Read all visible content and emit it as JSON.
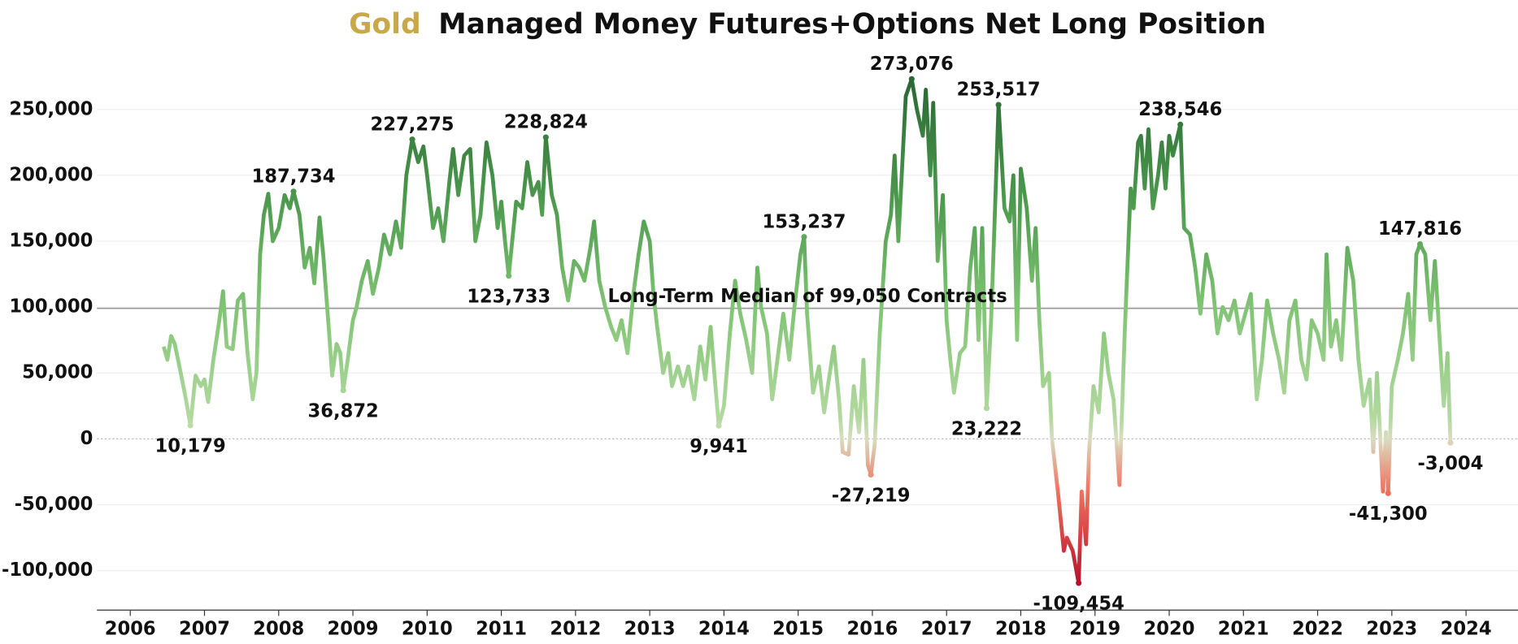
{
  "chart_data": {
    "type": "line",
    "title_highlight": "Gold",
    "title_highlight_color": "#c9a84a",
    "title": "Managed Money Futures+Options Net Long Position",
    "reference_line": {
      "value": 99050,
      "label": "Long-Term Median of 99,050 Contracts",
      "color": "#9a9a9a"
    },
    "xlim": [
      2005.55,
      2024.7
    ],
    "xticks": [
      2006,
      2007,
      2008,
      2009,
      2010,
      2011,
      2012,
      2013,
      2014,
      2015,
      2016,
      2017,
      2018,
      2019,
      2020,
      2021,
      2022,
      2023,
      2024
    ],
    "ylim": [
      -130000,
      300000
    ],
    "yticks": [
      {
        "value": -100000,
        "label": "-100,000"
      },
      {
        "value": -50000,
        "label": "-50,000"
      },
      0,
      {
        "value": 50000,
        "label": "50,000"
      },
      {
        "value": 100000,
        "label": "100,000"
      },
      {
        "value": 150000,
        "label": "150,000"
      },
      {
        "value": 200000,
        "label": "200,000"
      },
      {
        "value": 250000,
        "label": "250,000"
      }
    ],
    "grid": true,
    "color_stops": [
      {
        "value": -110000,
        "color": "#b5122b"
      },
      {
        "value": -40000,
        "color": "#f0705e"
      },
      {
        "value": 0,
        "color": "#d9dcc0"
      },
      {
        "value": 15000,
        "color": "#b3d9a0"
      },
      {
        "value": 100000,
        "color": "#80c474"
      },
      {
        "value": 180000,
        "color": "#4d9a4e"
      },
      {
        "value": 270000,
        "color": "#2a6a35"
      }
    ],
    "x": [
      2006.45,
      2006.5,
      2006.55,
      2006.6,
      2006.68,
      2006.75,
      2006.81,
      2006.88,
      2006.95,
      2007.0,
      2007.05,
      2007.12,
      2007.2,
      2007.25,
      2007.3,
      2007.38,
      2007.45,
      2007.52,
      2007.58,
      2007.65,
      2007.7,
      2007.75,
      2007.8,
      2007.86,
      2007.92,
      2008.0,
      2008.08,
      2008.15,
      2008.2,
      2008.28,
      2008.35,
      2008.42,
      2008.48,
      2008.55,
      2008.6,
      2008.68,
      2008.72,
      2008.78,
      2008.83,
      2008.87,
      2008.93,
      2009.0,
      2009.05,
      2009.12,
      2009.2,
      2009.27,
      2009.35,
      2009.42,
      2009.5,
      2009.58,
      2009.65,
      2009.72,
      2009.8,
      2009.88,
      2009.95,
      2010.0,
      2010.08,
      2010.15,
      2010.22,
      2010.3,
      2010.35,
      2010.42,
      2010.5,
      2010.58,
      2010.65,
      2010.72,
      2010.8,
      2010.88,
      2010.95,
      2011.0,
      2011.05,
      2011.1,
      2011.2,
      2011.28,
      2011.35,
      2011.42,
      2011.5,
      2011.55,
      2011.6,
      2011.68,
      2011.75,
      2011.82,
      2011.9,
      2011.98,
      2012.05,
      2012.12,
      2012.2,
      2012.25,
      2012.32,
      2012.4,
      2012.48,
      2012.55,
      2012.62,
      2012.7,
      2012.78,
      2012.85,
      2012.92,
      2013.0,
      2013.05,
      2013.1,
      2013.18,
      2013.25,
      2013.3,
      2013.38,
      2013.45,
      2013.52,
      2013.6,
      2013.68,
      2013.75,
      2013.82,
      2013.87,
      2013.93,
      2014.0,
      2014.08,
      2014.15,
      2014.22,
      2014.3,
      2014.38,
      2014.45,
      2014.5,
      2014.58,
      2014.65,
      2014.72,
      2014.8,
      2014.88,
      2014.95,
      2015.03,
      2015.08,
      2015.12,
      2015.2,
      2015.28,
      2015.35,
      2015.4,
      2015.48,
      2015.55,
      2015.6,
      2015.68,
      2015.75,
      2015.82,
      2015.88,
      2015.94,
      2015.98,
      2016.03,
      2016.1,
      2016.18,
      2016.25,
      2016.3,
      2016.35,
      2016.45,
      2016.53,
      2016.6,
      2016.68,
      2016.72,
      2016.78,
      2016.82,
      2016.88,
      2016.95,
      2017.0,
      2017.05,
      2017.1,
      2017.18,
      2017.25,
      2017.32,
      2017.38,
      2017.43,
      2017.48,
      2017.54,
      2017.6,
      2017.65,
      2017.7,
      2017.78,
      2017.85,
      2017.9,
      2017.95,
      2018.0,
      2018.08,
      2018.15,
      2018.2,
      2018.25,
      2018.3,
      2018.38,
      2018.42,
      2018.5,
      2018.58,
      2018.62,
      2018.7,
      2018.78,
      2018.82,
      2018.88,
      2018.92,
      2018.98,
      2019.05,
      2019.12,
      2019.18,
      2019.25,
      2019.33,
      2019.4,
      2019.48,
      2019.52,
      2019.58,
      2019.62,
      2019.67,
      2019.72,
      2019.78,
      2019.85,
      2019.9,
      2019.95,
      2020.0,
      2020.05,
      2020.15,
      2020.2,
      2020.28,
      2020.35,
      2020.42,
      2020.5,
      2020.58,
      2020.65,
      2020.72,
      2020.8,
      2020.88,
      2020.95,
      2021.0,
      2021.1,
      2021.18,
      2021.25,
      2021.32,
      2021.4,
      2021.48,
      2021.55,
      2021.62,
      2021.7,
      2021.78,
      2021.85,
      2021.92,
      2022.0,
      2022.08,
      2022.12,
      2022.18,
      2022.25,
      2022.32,
      2022.4,
      2022.48,
      2022.55,
      2022.62,
      2022.7,
      2022.75,
      2022.8,
      2022.88,
      2022.92,
      2022.95,
      2023.0,
      2023.08,
      2023.15,
      2023.22,
      2023.28,
      2023.33,
      2023.38,
      2023.45,
      2023.52,
      2023.58,
      2023.65,
      2023.7,
      2023.75,
      2023.79
    ],
    "values": [
      70000,
      60000,
      78000,
      72000,
      50000,
      30000,
      10179,
      48000,
      40000,
      45000,
      28000,
      60000,
      90000,
      112000,
      70000,
      68000,
      105000,
      110000,
      65000,
      30000,
      50000,
      140000,
      170000,
      186000,
      150000,
      160000,
      185000,
      175000,
      187734,
      170000,
      130000,
      145000,
      118000,
      168000,
      140000,
      80000,
      48000,
      72000,
      65000,
      36872,
      60000,
      90000,
      100000,
      120000,
      135000,
      110000,
      130000,
      155000,
      140000,
      165000,
      145000,
      200000,
      227275,
      210000,
      222000,
      200000,
      160000,
      175000,
      150000,
      195000,
      220000,
      185000,
      215000,
      220000,
      150000,
      170000,
      225000,
      200000,
      160000,
      180000,
      150000,
      123733,
      180000,
      175000,
      210000,
      185000,
      195000,
      170000,
      228824,
      185000,
      170000,
      130000,
      105000,
      135000,
      130000,
      120000,
      145000,
      165000,
      120000,
      100000,
      85000,
      75000,
      90000,
      65000,
      110000,
      140000,
      165000,
      150000,
      110000,
      85000,
      50000,
      65000,
      40000,
      55000,
      40000,
      55000,
      30000,
      70000,
      45000,
      85000,
      50000,
      9941,
      25000,
      80000,
      120000,
      95000,
      75000,
      50000,
      130000,
      100000,
      80000,
      30000,
      60000,
      95000,
      60000,
      100000,
      140000,
      153237,
      95000,
      35000,
      55000,
      20000,
      40000,
      70000,
      30000,
      -10000,
      -12000,
      40000,
      5000,
      60000,
      -20000,
      -27219,
      -5000,
      80000,
      150000,
      170000,
      215000,
      150000,
      260000,
      273076,
      250000,
      230000,
      265000,
      200000,
      255000,
      135000,
      185000,
      90000,
      60000,
      35000,
      65000,
      70000,
      130000,
      160000,
      75000,
      160000,
      23222,
      90000,
      170000,
      253517,
      175000,
      165000,
      200000,
      75000,
      205000,
      175000,
      120000,
      160000,
      90000,
      40000,
      50000,
      0,
      -40000,
      -85000,
      -75000,
      -85000,
      -109454,
      -40000,
      -80000,
      -10000,
      40000,
      20000,
      80000,
      50000,
      30000,
      -35000,
      80000,
      190000,
      175000,
      225000,
      230000,
      190000,
      235000,
      175000,
      200000,
      225000,
      190000,
      230000,
      215000,
      238546,
      160000,
      155000,
      130000,
      95000,
      140000,
      120000,
      80000,
      100000,
      90000,
      105000,
      80000,
      90000,
      110000,
      30000,
      60000,
      105000,
      80000,
      60000,
      35000,
      90000,
      105000,
      60000,
      45000,
      90000,
      80000,
      60000,
      140000,
      70000,
      90000,
      60000,
      145000,
      120000,
      60000,
      25000,
      45000,
      -10000,
      50000,
      -40000,
      5000,
      -41300,
      40000,
      60000,
      80000,
      110000,
      60000,
      140000,
      147816,
      140000,
      90000,
      135000,
      70000,
      25000,
      65000,
      -3004
    ],
    "value_labels": [
      null,
      null,
      null,
      null,
      null,
      null,
      "10,179",
      null,
      null,
      null,
      null,
      null,
      null,
      null,
      null,
      null,
      null,
      null,
      null,
      null,
      null,
      null,
      null,
      null,
      null,
      null,
      null,
      null,
      "187,734",
      null,
      null,
      null,
      null,
      null,
      null,
      null,
      null,
      null,
      null,
      "36,872",
      null,
      null,
      null,
      null,
      null,
      null,
      null,
      null,
      null,
      null,
      null,
      null,
      "227,275",
      null,
      null,
      null,
      null,
      null,
      null,
      null,
      null,
      null,
      null,
      null,
      null,
      null,
      null,
      null,
      null,
      null,
      null,
      "123,733",
      null,
      null,
      null,
      null,
      null,
      null,
      "228,824",
      null,
      null,
      null,
      null,
      null,
      null,
      null,
      null,
      null,
      null,
      null,
      null,
      null,
      null,
      null,
      null,
      null,
      null,
      null,
      null,
      null,
      null,
      null,
      null,
      null,
      null,
      null,
      null,
      null,
      null,
      null,
      null,
      "9,941",
      null,
      null,
      null,
      null,
      null,
      null,
      null,
      null,
      null,
      null,
      null,
      null,
      null,
      null,
      null,
      "153,237",
      null,
      null,
      null,
      null,
      null,
      null,
      null,
      null,
      null,
      null,
      null,
      null,
      null,
      "-27,219",
      null,
      null,
      null,
      null,
      null,
      null,
      null,
      "273,076",
      null,
      null,
      null,
      null,
      null,
      null,
      null,
      null,
      null,
      null,
      null,
      null,
      null,
      null,
      null,
      null,
      "23,222",
      null,
      null,
      "253,517",
      null,
      null,
      null,
      null,
      null,
      null,
      null,
      null,
      null,
      null,
      null,
      null,
      null,
      null,
      null,
      null,
      "-109,454",
      null,
      null,
      null,
      null,
      null,
      null,
      null,
      null,
      null,
      null,
      null,
      null,
      null,
      null,
      null,
      null,
      null,
      null,
      null,
      null,
      null,
      null,
      "238,546",
      null,
      null,
      null,
      null,
      null,
      null,
      null,
      null,
      null,
      null,
      null,
      null,
      null,
      null,
      null,
      null,
      null,
      null,
      null,
      null,
      null,
      null,
      null,
      null,
      null,
      null,
      null,
      null,
      null,
      null,
      null,
      null,
      null,
      null,
      null,
      null,
      null,
      null,
      null,
      "-41,300",
      null,
      null,
      null,
      null,
      null,
      null,
      "147,816",
      null,
      null,
      null,
      null,
      null,
      null,
      "-3,004"
    ]
  }
}
